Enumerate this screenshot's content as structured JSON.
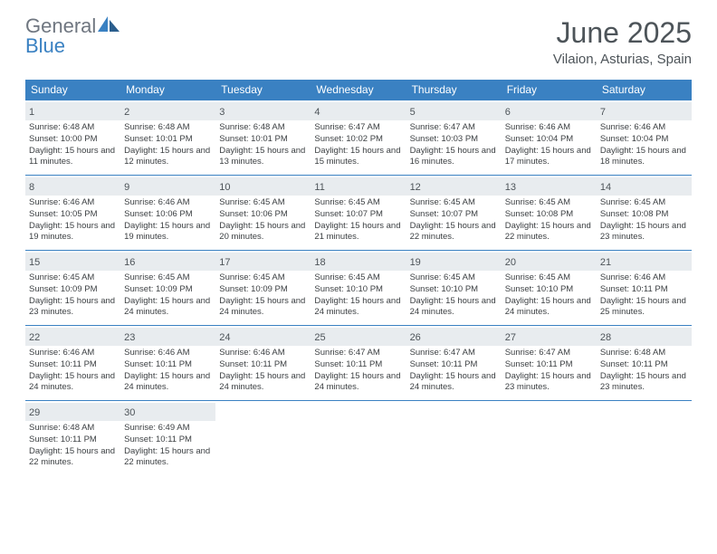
{
  "brand": {
    "general": "General",
    "blue": "Blue"
  },
  "title": "June 2025",
  "location": "Vilaion, Asturias, Spain",
  "colors": {
    "accent": "#3a81c2",
    "daynum_bg": "#e8ecef",
    "text": "#4d5459",
    "body_text": "#3b3f42",
    "logo_grey": "#6f7680"
  },
  "days_of_week": [
    "Sunday",
    "Monday",
    "Tuesday",
    "Wednesday",
    "Thursday",
    "Friday",
    "Saturday"
  ],
  "weeks": [
    [
      {
        "n": "1",
        "sunrise": "6:48 AM",
        "sunset": "10:00 PM",
        "dl_h": "15",
        "dl_m": "11"
      },
      {
        "n": "2",
        "sunrise": "6:48 AM",
        "sunset": "10:01 PM",
        "dl_h": "15",
        "dl_m": "12"
      },
      {
        "n": "3",
        "sunrise": "6:48 AM",
        "sunset": "10:01 PM",
        "dl_h": "15",
        "dl_m": "13"
      },
      {
        "n": "4",
        "sunrise": "6:47 AM",
        "sunset": "10:02 PM",
        "dl_h": "15",
        "dl_m": "15"
      },
      {
        "n": "5",
        "sunrise": "6:47 AM",
        "sunset": "10:03 PM",
        "dl_h": "15",
        "dl_m": "16"
      },
      {
        "n": "6",
        "sunrise": "6:46 AM",
        "sunset": "10:04 PM",
        "dl_h": "15",
        "dl_m": "17"
      },
      {
        "n": "7",
        "sunrise": "6:46 AM",
        "sunset": "10:04 PM",
        "dl_h": "15",
        "dl_m": "18"
      }
    ],
    [
      {
        "n": "8",
        "sunrise": "6:46 AM",
        "sunset": "10:05 PM",
        "dl_h": "15",
        "dl_m": "19"
      },
      {
        "n": "9",
        "sunrise": "6:46 AM",
        "sunset": "10:06 PM",
        "dl_h": "15",
        "dl_m": "19"
      },
      {
        "n": "10",
        "sunrise": "6:45 AM",
        "sunset": "10:06 PM",
        "dl_h": "15",
        "dl_m": "20"
      },
      {
        "n": "11",
        "sunrise": "6:45 AM",
        "sunset": "10:07 PM",
        "dl_h": "15",
        "dl_m": "21"
      },
      {
        "n": "12",
        "sunrise": "6:45 AM",
        "sunset": "10:07 PM",
        "dl_h": "15",
        "dl_m": "22"
      },
      {
        "n": "13",
        "sunrise": "6:45 AM",
        "sunset": "10:08 PM",
        "dl_h": "15",
        "dl_m": "22"
      },
      {
        "n": "14",
        "sunrise": "6:45 AM",
        "sunset": "10:08 PM",
        "dl_h": "15",
        "dl_m": "23"
      }
    ],
    [
      {
        "n": "15",
        "sunrise": "6:45 AM",
        "sunset": "10:09 PM",
        "dl_h": "15",
        "dl_m": "23"
      },
      {
        "n": "16",
        "sunrise": "6:45 AM",
        "sunset": "10:09 PM",
        "dl_h": "15",
        "dl_m": "24"
      },
      {
        "n": "17",
        "sunrise": "6:45 AM",
        "sunset": "10:09 PM",
        "dl_h": "15",
        "dl_m": "24"
      },
      {
        "n": "18",
        "sunrise": "6:45 AM",
        "sunset": "10:10 PM",
        "dl_h": "15",
        "dl_m": "24"
      },
      {
        "n": "19",
        "sunrise": "6:45 AM",
        "sunset": "10:10 PM",
        "dl_h": "15",
        "dl_m": "24"
      },
      {
        "n": "20",
        "sunrise": "6:45 AM",
        "sunset": "10:10 PM",
        "dl_h": "15",
        "dl_m": "24"
      },
      {
        "n": "21",
        "sunrise": "6:46 AM",
        "sunset": "10:11 PM",
        "dl_h": "15",
        "dl_m": "25"
      }
    ],
    [
      {
        "n": "22",
        "sunrise": "6:46 AM",
        "sunset": "10:11 PM",
        "dl_h": "15",
        "dl_m": "24"
      },
      {
        "n": "23",
        "sunrise": "6:46 AM",
        "sunset": "10:11 PM",
        "dl_h": "15",
        "dl_m": "24"
      },
      {
        "n": "24",
        "sunrise": "6:46 AM",
        "sunset": "10:11 PM",
        "dl_h": "15",
        "dl_m": "24"
      },
      {
        "n": "25",
        "sunrise": "6:47 AM",
        "sunset": "10:11 PM",
        "dl_h": "15",
        "dl_m": "24"
      },
      {
        "n": "26",
        "sunrise": "6:47 AM",
        "sunset": "10:11 PM",
        "dl_h": "15",
        "dl_m": "24"
      },
      {
        "n": "27",
        "sunrise": "6:47 AM",
        "sunset": "10:11 PM",
        "dl_h": "15",
        "dl_m": "23"
      },
      {
        "n": "28",
        "sunrise": "6:48 AM",
        "sunset": "10:11 PM",
        "dl_h": "15",
        "dl_m": "23"
      }
    ],
    [
      {
        "n": "29",
        "sunrise": "6:48 AM",
        "sunset": "10:11 PM",
        "dl_h": "15",
        "dl_m": "22"
      },
      {
        "n": "30",
        "sunrise": "6:49 AM",
        "sunset": "10:11 PM",
        "dl_h": "15",
        "dl_m": "22"
      },
      null,
      null,
      null,
      null,
      null
    ]
  ],
  "labels": {
    "sunrise": "Sunrise:",
    "sunset": "Sunset:",
    "daylight": "Daylight:",
    "hours": "hours",
    "and": "and",
    "minutes": "minutes."
  }
}
